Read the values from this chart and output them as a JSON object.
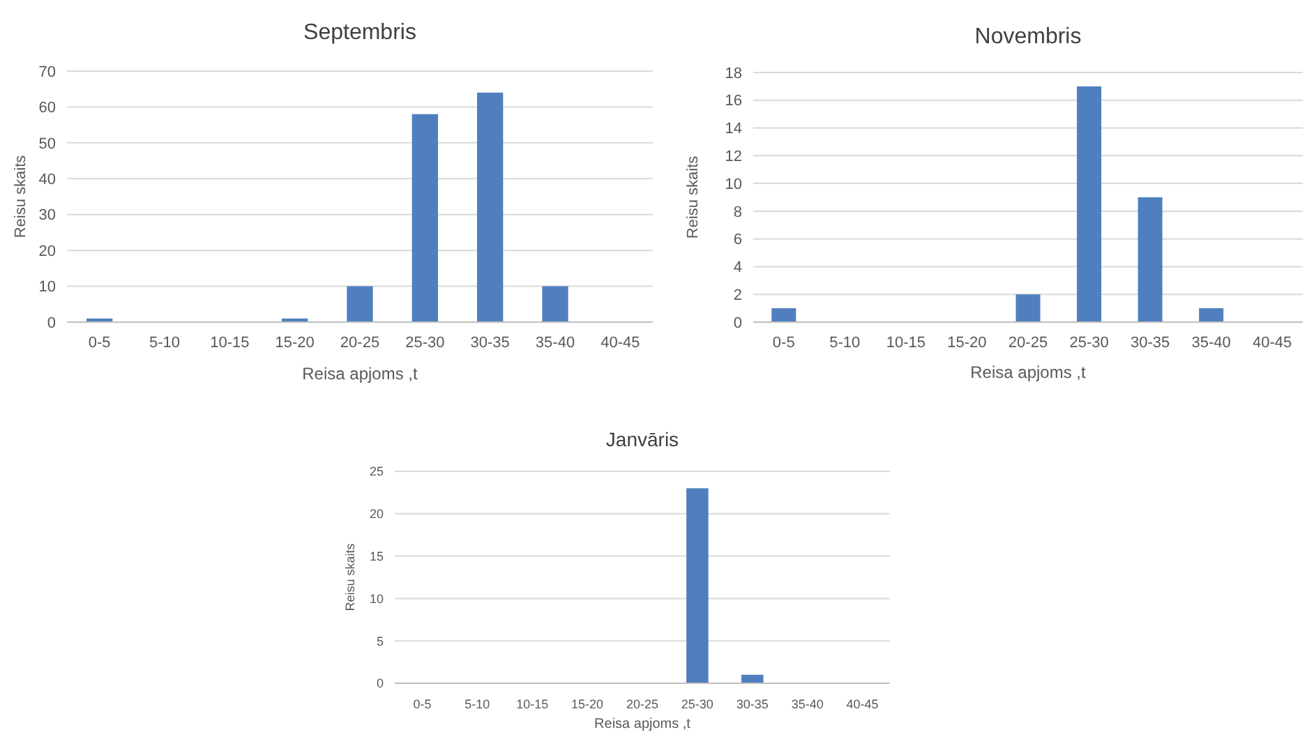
{
  "chart_data": [
    {
      "type": "bar",
      "title": "Septembris",
      "xlabel": "Reisa apjoms ,t",
      "ylabel": "Reisu skaits",
      "categories": [
        "0-5",
        "5-10",
        "10-15",
        "15-20",
        "20-25",
        "25-30",
        "30-35",
        "35-40",
        "40-45"
      ],
      "values": [
        1,
        0,
        0,
        1,
        10,
        58,
        64,
        10,
        0
      ],
      "color": "#4f7fbf",
      "ylim": [
        0,
        70
      ],
      "yticks": [
        0,
        10,
        20,
        30,
        40,
        50,
        60,
        70
      ],
      "grid": "y"
    },
    {
      "type": "bar",
      "title": "Novembris",
      "xlabel": "Reisa apjoms ,t",
      "ylabel": "Reisu skaits",
      "categories": [
        "0-5",
        "5-10",
        "10-15",
        "15-20",
        "20-25",
        "25-30",
        "30-35",
        "35-40",
        "40-45"
      ],
      "values": [
        1,
        0,
        0,
        0,
        2,
        17,
        9,
        1,
        0
      ],
      "color": "#4f7fbf",
      "ylim": [
        0,
        18
      ],
      "yticks": [
        0,
        2,
        4,
        6,
        8,
        10,
        12,
        14,
        16,
        18
      ],
      "grid": "y"
    },
    {
      "type": "bar",
      "title": "Janvāris",
      "xlabel": "Reisa apjoms ,t",
      "ylabel": "Reisu skaits",
      "categories": [
        "0-5",
        "5-10",
        "10-15",
        "15-20",
        "20-25",
        "25-30",
        "30-35",
        "35-40",
        "40-45"
      ],
      "values": [
        0,
        0,
        0,
        0,
        0,
        23,
        1,
        0,
        0
      ],
      "color": "#4f7fbf",
      "ylim": [
        0,
        25
      ],
      "yticks": [
        0,
        5,
        10,
        15,
        20,
        25
      ],
      "grid": "y"
    }
  ]
}
